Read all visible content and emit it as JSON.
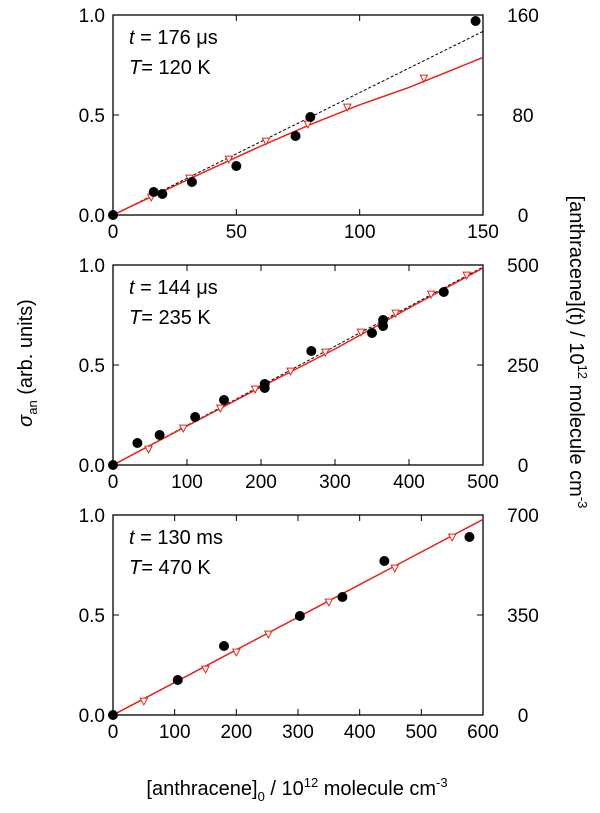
{
  "figure": {
    "xlabel": "[anthracene]",
    "xlabel_sub": "0",
    "xlabel_rest": " / 10",
    "xlabel_sup": "12",
    "xlabel_tail": " molecule cm",
    "xlabel_sup2": "-3",
    "ylabel_sym": "σ",
    "ylabel_sub": "an",
    "ylabel_rest": " (arb. units)",
    "y2label": "[anthracene](t) / 10",
    "y2label_sup": "12",
    "y2label_tail": " molecule cm",
    "y2label_sup2": "-3"
  },
  "colors": {
    "points": "#000000",
    "model": "#e8221b",
    "linear": "#000000",
    "open_markers": "#e8221b"
  },
  "chart_data": [
    {
      "type": "scatter",
      "annotation_t_var": "t",
      "annotation_t_val": " = 176 μs",
      "annotation_T_var": "T",
      "annotation_T_val": "= 120 K",
      "xlim": [
        0,
        150
      ],
      "ylim": [
        0,
        1.0
      ],
      "y2lim": [
        0,
        160
      ],
      "xticks": [
        "0",
        "50",
        "100",
        "150"
      ],
      "yticks": [
        "0.0",
        "0.5",
        "1.0"
      ],
      "y2ticks": [
        "0",
        "80",
        "160"
      ],
      "points": [
        [
          0,
          0.0
        ],
        [
          16.5,
          0.115
        ],
        [
          20,
          0.105
        ],
        [
          32,
          0.165
        ],
        [
          50,
          0.245
        ],
        [
          74,
          0.395
        ],
        [
          80,
          0.49
        ],
        [
          147,
          0.97
        ]
      ],
      "linear_slope": 0.00612,
      "model_curve": [
        [
          0,
          0
        ],
        [
          20,
          0.117
        ],
        [
          40,
          0.232
        ],
        [
          60,
          0.345
        ],
        [
          80,
          0.452
        ],
        [
          100,
          0.551
        ],
        [
          120,
          0.638
        ],
        [
          150,
          0.788
        ]
      ],
      "model_markers": [
        [
          15.5,
          0.09
        ],
        [
          31,
          0.185
        ],
        [
          47,
          0.28
        ],
        [
          62,
          0.37
        ],
        [
          79,
          0.455
        ],
        [
          95,
          0.54
        ],
        [
          126,
          0.685
        ]
      ]
    },
    {
      "type": "scatter",
      "annotation_t_var": "t",
      "annotation_t_val": " = 144 μs",
      "annotation_T_var": "T",
      "annotation_T_val": "= 235 K",
      "xlim": [
        0,
        500
      ],
      "ylim": [
        0,
        1.0
      ],
      "y2lim": [
        0,
        500
      ],
      "xticks": [
        "0",
        "100",
        "200",
        "300",
        "400",
        "500"
      ],
      "yticks": [
        "0.0",
        "0.5",
        "1.0"
      ],
      "y2ticks": [
        "0",
        "250",
        "500"
      ],
      "points": [
        [
          0,
          0.0
        ],
        [
          33,
          0.11
        ],
        [
          63,
          0.15
        ],
        [
          111,
          0.24
        ],
        [
          150,
          0.325
        ],
        [
          205,
          0.385
        ],
        [
          205,
          0.405
        ],
        [
          268,
          0.57
        ],
        [
          350,
          0.66
        ],
        [
          365,
          0.725
        ],
        [
          365,
          0.695
        ],
        [
          447,
          0.865
        ]
      ],
      "linear_slope": 0.00198,
      "model_curve": [
        [
          0,
          0
        ],
        [
          100,
          0.195
        ],
        [
          200,
          0.39
        ],
        [
          300,
          0.58
        ],
        [
          400,
          0.785
        ],
        [
          500,
          0.985
        ]
      ],
      "model_markers": [
        [
          48,
          0.08
        ],
        [
          95,
          0.185
        ],
        [
          145,
          0.285
        ],
        [
          192,
          0.38
        ],
        [
          240,
          0.47
        ],
        [
          287,
          0.565
        ],
        [
          335,
          0.665
        ],
        [
          382,
          0.76
        ],
        [
          430,
          0.855
        ],
        [
          478,
          0.95
        ]
      ]
    },
    {
      "type": "scatter",
      "annotation_t_var": "t",
      "annotation_t_val": " = 130 ms",
      "annotation_T_var": "T",
      "annotation_T_val": "= 470 K",
      "xlim": [
        0,
        600
      ],
      "ylim": [
        0,
        1.0
      ],
      "y2lim": [
        0,
        700
      ],
      "xticks": [
        "0",
        "100",
        "200",
        "300",
        "400",
        "500",
        "600"
      ],
      "yticks": [
        "0.0",
        "0.5",
        "1.0"
      ],
      "y2ticks": [
        "0",
        "350",
        "700"
      ],
      "points": [
        [
          0,
          0.0
        ],
        [
          105,
          0.175
        ],
        [
          180,
          0.345
        ],
        [
          303,
          0.495
        ],
        [
          372,
          0.59
        ],
        [
          440,
          0.77
        ],
        [
          578,
          0.89
        ]
      ],
      "linear_slope": 0.00163,
      "model_curve": [
        [
          0,
          0
        ],
        [
          100,
          0.163
        ],
        [
          200,
          0.326
        ],
        [
          300,
          0.489
        ],
        [
          400,
          0.652
        ],
        [
          500,
          0.815
        ],
        [
          600,
          0.978
        ]
      ],
      "model_markers": [
        [
          50,
          0.07
        ],
        [
          150,
          0.23
        ],
        [
          200,
          0.315
        ],
        [
          252,
          0.405
        ],
        [
          350,
          0.565
        ],
        [
          457,
          0.735
        ],
        [
          550,
          0.89
        ]
      ]
    }
  ]
}
